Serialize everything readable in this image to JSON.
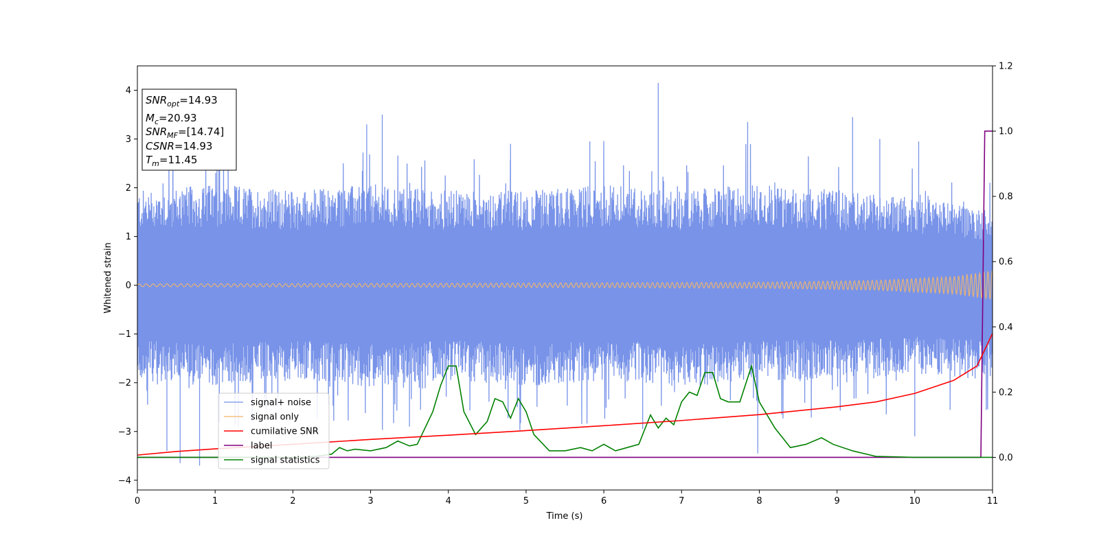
{
  "chart_data": {
    "type": "line",
    "xlabel": "Time (s)",
    "ylabel": "Whitened strain",
    "xlim": [
      0,
      11
    ],
    "ylim": [
      -4.2,
      4.5
    ],
    "y2lim": [
      -0.1,
      1.2
    ],
    "x_ticks": [
      "0",
      "1",
      "2",
      "3",
      "4",
      "5",
      "6",
      "7",
      "8",
      "9",
      "10",
      "11"
    ],
    "y_ticks": [
      "−4",
      "−3",
      "−2",
      "−1",
      "0",
      "1",
      "2",
      "3",
      "4"
    ],
    "y2_ticks": [
      "0.0",
      "0.2",
      "0.4",
      "0.6",
      "0.8",
      "1.0",
      "1.2"
    ],
    "legend_position": "lower-left",
    "annotation": [
      {
        "label": "SNR",
        "sub": "opt",
        "value": "=14.93"
      },
      {
        "label": "M",
        "sub": "c",
        "value": "=20.93"
      },
      {
        "label": "SNR",
        "sub": "MF",
        "value": "=[14.74]"
      },
      {
        "label": "CSNR",
        "sub": "",
        "value": "=14.93"
      },
      {
        "label": "T",
        "sub": "m",
        "value": "=11.45"
      }
    ],
    "series": [
      {
        "name": "signal+ noise",
        "color": "#7893e8",
        "axis": "left",
        "envelope": {
          "t": [
            0,
            1,
            2,
            3,
            4,
            5,
            6,
            7,
            8,
            9,
            10,
            11
          ],
          "upper": [
            1.5,
            1.6,
            1.5,
            1.6,
            1.5,
            1.5,
            1.6,
            1.5,
            1.6,
            1.5,
            1.4,
            1.2
          ],
          "lower": [
            -1.5,
            -1.6,
            -1.5,
            -1.6,
            -1.5,
            -1.6,
            -1.5,
            -1.6,
            -1.5,
            -1.5,
            -1.4,
            -1.5
          ]
        },
        "peaks": [
          {
            "t": 0.38,
            "v": -3.4
          },
          {
            "t": 0.55,
            "v": -3.65
          },
          {
            "t": 0.8,
            "v": -3.7
          },
          {
            "t": 1.3,
            "v": -2.9
          },
          {
            "t": 2.95,
            "v": 3.3
          },
          {
            "t": 3.15,
            "v": 3.5
          },
          {
            "t": 3.5,
            "v": -2.9
          },
          {
            "t": 4.8,
            "v": 2.9
          },
          {
            "t": 5.82,
            "v": 2.95
          },
          {
            "t": 6.5,
            "v": -2.95
          },
          {
            "t": 6.7,
            "v": 4.15
          },
          {
            "t": 7.85,
            "v": 3.35
          },
          {
            "t": 7.98,
            "v": -3.45
          },
          {
            "t": 9.2,
            "v": 3.45
          },
          {
            "t": 9.55,
            "v": 3.0
          },
          {
            "t": 10.0,
            "v": -3.1
          },
          {
            "t": 10.05,
            "v": 2.95
          }
        ]
      },
      {
        "name": "signal only",
        "color": "#f5b66a",
        "axis": "left",
        "amplitude": {
          "t": [
            0,
            4,
            8,
            9.5,
            10.5,
            11
          ],
          "a": [
            0.03,
            0.04,
            0.06,
            0.1,
            0.18,
            0.3
          ]
        }
      },
      {
        "name": "cumilative SNR",
        "color": "#ff0000",
        "axis": "right",
        "x": [
          0,
          0.5,
          1,
          2,
          3,
          4,
          5,
          6,
          7,
          8,
          9,
          9.5,
          10,
          10.5,
          10.8,
          11
        ],
        "y": [
          0.007,
          0.018,
          0.026,
          0.04,
          0.055,
          0.068,
          0.082,
          0.097,
          0.113,
          0.131,
          0.155,
          0.17,
          0.196,
          0.236,
          0.28,
          0.38
        ]
      },
      {
        "name": "label",
        "color": "#800080",
        "axis": "right",
        "x": [
          0,
          10.85,
          10.9,
          11
        ],
        "y": [
          0,
          0,
          1,
          1
        ]
      },
      {
        "name": "signal statistics",
        "color": "#008000",
        "axis": "right",
        "x": [
          0,
          1,
          2,
          2.3,
          2.5,
          2.6,
          2.7,
          2.8,
          3.0,
          3.2,
          3.35,
          3.5,
          3.6,
          3.8,
          3.9,
          4.0,
          4.1,
          4.2,
          4.35,
          4.5,
          4.6,
          4.7,
          4.8,
          4.9,
          5.0,
          5.1,
          5.3,
          5.5,
          5.7,
          5.85,
          6.0,
          6.15,
          6.3,
          6.45,
          6.6,
          6.7,
          6.8,
          6.9,
          7.0,
          7.1,
          7.2,
          7.3,
          7.4,
          7.5,
          7.6,
          7.75,
          7.9,
          8.0,
          8.2,
          8.4,
          8.6,
          8.8,
          8.95,
          9.2,
          9.5,
          10,
          10.8,
          11
        ],
        "y": [
          0.0,
          0.0,
          0.0,
          0.003,
          0.01,
          0.03,
          0.02,
          0.025,
          0.02,
          0.03,
          0.05,
          0.035,
          0.04,
          0.14,
          0.22,
          0.28,
          0.28,
          0.14,
          0.07,
          0.11,
          0.18,
          0.17,
          0.12,
          0.18,
          0.14,
          0.07,
          0.02,
          0.02,
          0.03,
          0.02,
          0.04,
          0.02,
          0.03,
          0.04,
          0.13,
          0.09,
          0.12,
          0.1,
          0.17,
          0.2,
          0.19,
          0.26,
          0.26,
          0.18,
          0.17,
          0.17,
          0.28,
          0.17,
          0.09,
          0.03,
          0.04,
          0.06,
          0.04,
          0.02,
          0.003,
          0.0,
          0.0,
          0.0
        ]
      }
    ]
  }
}
